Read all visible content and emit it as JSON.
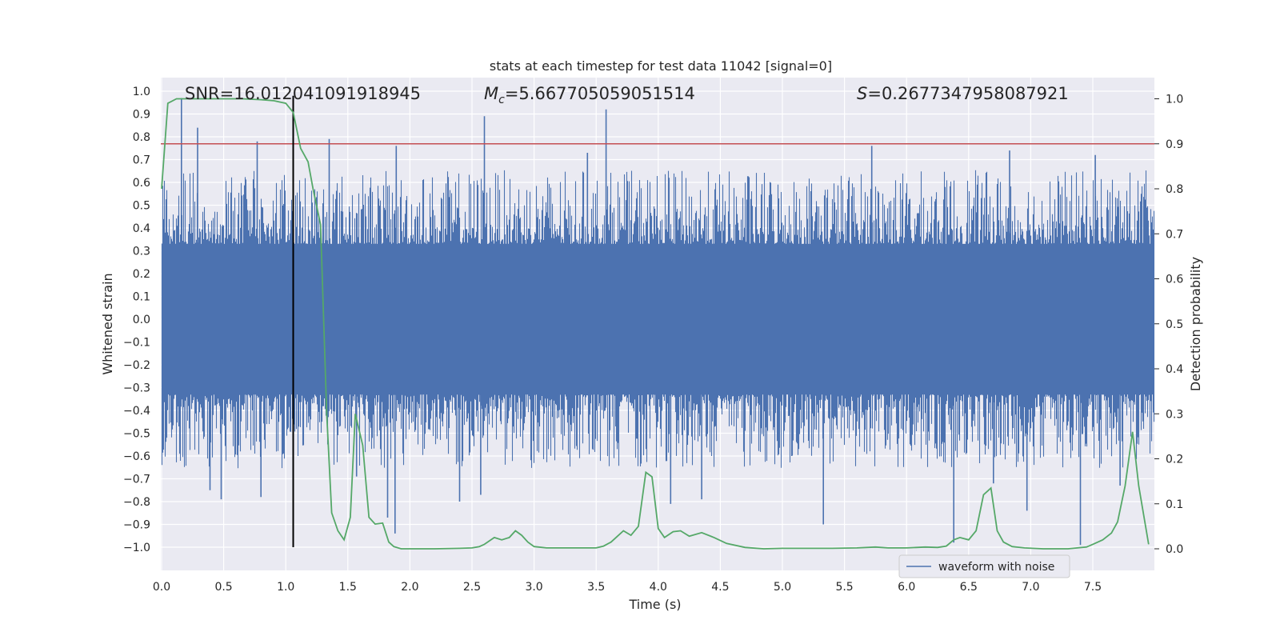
{
  "chart_data": {
    "type": "line",
    "title": "stats at each timestep for test data 11042 [signal=0]",
    "xlabel": "Time (s)",
    "ylabel": "Whitened strain",
    "ylabel_right": "Detection probability",
    "xlim": [
      0.0,
      7.97
    ],
    "ylim": [
      -1.1,
      1.05
    ],
    "ylim_right": [
      -0.05,
      1.02
    ],
    "x_ticks": [
      0.0,
      0.5,
      1.0,
      1.5,
      2.0,
      2.5,
      3.0,
      3.5,
      4.0,
      4.5,
      5.0,
      5.5,
      6.0,
      6.5,
      7.0,
      7.5
    ],
    "x_tick_labels": [
      "0.0",
      "0.5",
      "1.0",
      "1.5",
      "2.0",
      "2.5",
      "3.0",
      "3.5",
      "4.0",
      "4.5",
      "5.0",
      "5.5",
      "6.0",
      "6.5",
      "7.0",
      "7.5"
    ],
    "y_ticks": [
      1.0,
      0.9,
      0.8,
      0.7,
      0.6,
      0.5,
      0.4,
      0.3,
      0.2,
      0.1,
      0.0,
      -0.1,
      -0.2,
      -0.3,
      -0.4,
      -0.5,
      -0.6,
      -0.7,
      -0.8,
      -0.9,
      -1.0
    ],
    "y_tick_labels": [
      "1.0",
      "0.9",
      "0.8",
      "0.7",
      "0.6",
      "0.5",
      "0.4",
      "0.3",
      "0.2",
      "0.1",
      "0.0",
      "−0.1",
      "−0.2",
      "−0.3",
      "−0.4",
      "−0.5",
      "−0.6",
      "−0.7",
      "−0.8",
      "−0.9",
      "−1.0"
    ],
    "y_right_ticks": [
      1.0,
      0.9,
      0.8,
      0.7,
      0.6,
      0.5,
      0.4,
      0.3,
      0.2,
      0.1,
      0.0
    ],
    "y_right_tick_labels": [
      "1.0",
      "0.9",
      "0.8",
      "0.7",
      "0.6",
      "0.5",
      "0.4",
      "0.3",
      "0.2",
      "0.1",
      "0.0"
    ],
    "annotations": {
      "snr": "SNR=16.012041091918945",
      "mc_symbol": "M",
      "mc_sub": "c",
      "mc_value": "=5.667705059051514",
      "s_symbol": "S",
      "s_value": "=0.2677347958087921"
    },
    "threshold_line": {
      "value": 0.9,
      "axis": "right",
      "color": "#c44e52"
    },
    "marker_line": {
      "x": 1.06,
      "y_range": [
        -1.0,
        0.98
      ],
      "color": "#000000"
    },
    "series": [
      {
        "name": "waveform with noise",
        "axis": "left",
        "color": "#4c72b0",
        "kind": "noise",
        "core_range": [
          -0.33,
          0.33
        ],
        "envelope_range": [
          -0.6,
          0.6
        ],
        "spikes": [
          {
            "x": 0.16,
            "y": 0.97
          },
          {
            "x": 0.29,
            "y": 0.84
          },
          {
            "x": 0.77,
            "y": 0.78
          },
          {
            "x": 1.35,
            "y": 0.79
          },
          {
            "x": 1.89,
            "y": 0.76
          },
          {
            "x": 2.6,
            "y": 0.89
          },
          {
            "x": 3.58,
            "y": 0.92
          },
          {
            "x": 3.43,
            "y": 0.73
          },
          {
            "x": 5.72,
            "y": 0.76
          },
          {
            "x": 6.83,
            "y": 0.74
          },
          {
            "x": 7.52,
            "y": 0.72
          },
          {
            "x": 0.39,
            "y": -0.75
          },
          {
            "x": 0.48,
            "y": -0.79
          },
          {
            "x": 0.8,
            "y": -0.78
          },
          {
            "x": 1.06,
            "y": -0.75
          },
          {
            "x": 1.57,
            "y": -0.69
          },
          {
            "x": 1.82,
            "y": -0.87
          },
          {
            "x": 1.88,
            "y": -0.94
          },
          {
            "x": 2.4,
            "y": -0.8
          },
          {
            "x": 2.57,
            "y": -0.77
          },
          {
            "x": 4.1,
            "y": -0.81
          },
          {
            "x": 4.35,
            "y": -0.79
          },
          {
            "x": 5.33,
            "y": -0.9
          },
          {
            "x": 6.38,
            "y": -0.98
          },
          {
            "x": 6.7,
            "y": -0.72
          },
          {
            "x": 6.97,
            "y": -0.84
          },
          {
            "x": 7.4,
            "y": -0.99
          },
          {
            "x": 7.72,
            "y": -0.73
          }
        ]
      },
      {
        "name": "detection probability",
        "axis": "right",
        "color": "#55a868",
        "x": [
          0.0,
          0.05,
          0.12,
          0.2,
          0.35,
          0.5,
          0.65,
          0.8,
          0.9,
          1.0,
          1.06,
          1.12,
          1.18,
          1.22,
          1.28,
          1.33,
          1.37,
          1.42,
          1.47,
          1.52,
          1.56,
          1.62,
          1.67,
          1.72,
          1.78,
          1.83,
          1.87,
          1.93,
          2.0,
          2.2,
          2.4,
          2.5,
          2.56,
          2.6,
          2.68,
          2.74,
          2.8,
          2.85,
          2.9,
          2.95,
          3.0,
          3.1,
          3.3,
          3.5,
          3.56,
          3.62,
          3.72,
          3.78,
          3.84,
          3.9,
          3.95,
          4.0,
          4.05,
          4.12,
          4.18,
          4.25,
          4.35,
          4.45,
          4.55,
          4.7,
          4.85,
          5.0,
          5.2,
          5.4,
          5.6,
          5.75,
          5.85,
          6.0,
          6.15,
          6.25,
          6.32,
          6.38,
          6.43,
          6.5,
          6.56,
          6.62,
          6.68,
          6.73,
          6.78,
          6.85,
          6.95,
          7.1,
          7.3,
          7.45,
          7.5,
          7.58,
          7.65,
          7.7,
          7.76,
          7.82,
          7.87,
          7.95
        ],
        "y": [
          0.8,
          0.99,
          1.0,
          1.0,
          1.0,
          1.0,
          1.0,
          0.998,
          0.996,
          0.99,
          0.97,
          0.89,
          0.86,
          0.8,
          0.72,
          0.3,
          0.08,
          0.04,
          0.02,
          0.07,
          0.3,
          0.23,
          0.07,
          0.055,
          0.057,
          0.015,
          0.005,
          0.0,
          0.0,
          0.0,
          0.001,
          0.002,
          0.005,
          0.01,
          0.025,
          0.02,
          0.025,
          0.04,
          0.03,
          0.015,
          0.005,
          0.002,
          0.002,
          0.002,
          0.006,
          0.015,
          0.04,
          0.03,
          0.05,
          0.17,
          0.16,
          0.045,
          0.025,
          0.038,
          0.04,
          0.028,
          0.036,
          0.025,
          0.012,
          0.003,
          0.0,
          0.001,
          0.001,
          0.001,
          0.002,
          0.004,
          0.002,
          0.002,
          0.004,
          0.003,
          0.006,
          0.02,
          0.025,
          0.02,
          0.04,
          0.12,
          0.135,
          0.04,
          0.015,
          0.005,
          0.002,
          0.0,
          0.0,
          0.004,
          0.01,
          0.02,
          0.035,
          0.06,
          0.14,
          0.26,
          0.14,
          0.01
        ]
      }
    ],
    "legend": {
      "entries": [
        "waveform with noise"
      ],
      "position": "lower-right"
    },
    "grid": true,
    "style": {
      "axes_bg": "#eaeaf2",
      "grid_color": "#ffffff"
    }
  }
}
